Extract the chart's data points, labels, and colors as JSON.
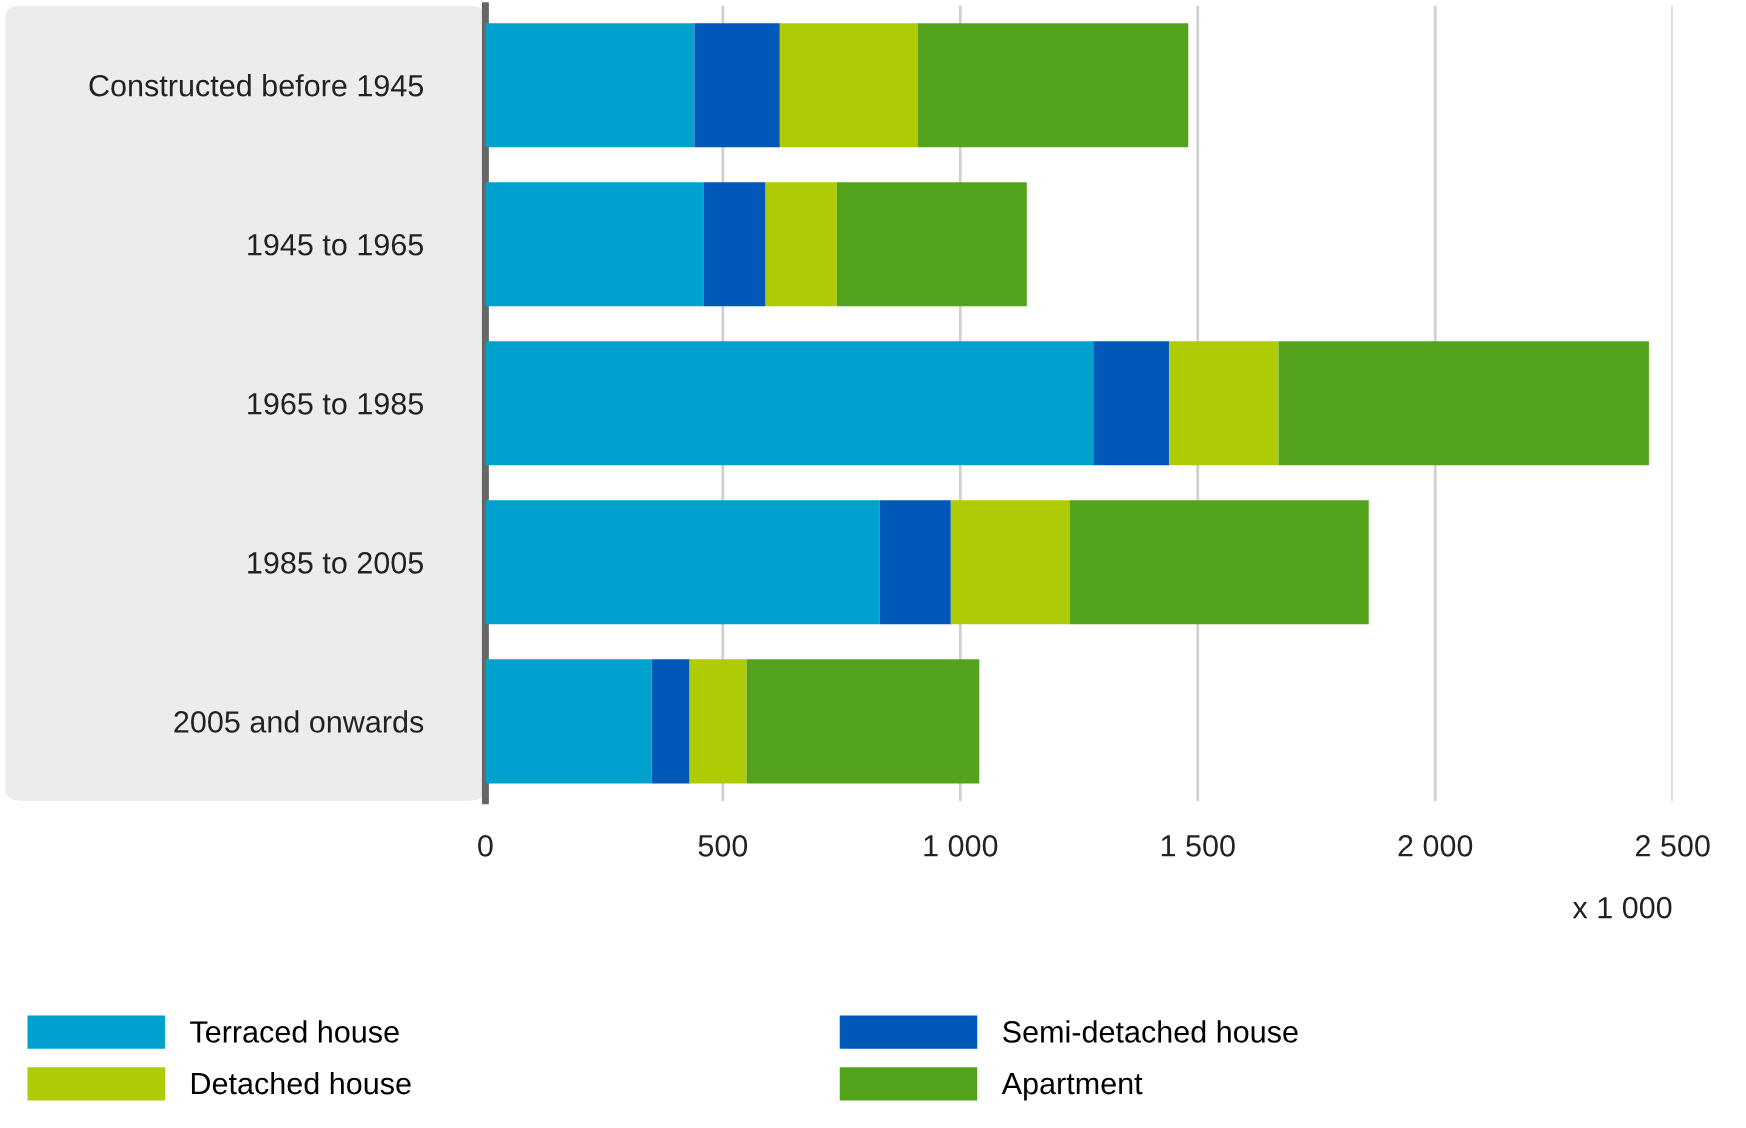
{
  "chart_data": {
    "type": "bar",
    "orientation": "horizontal",
    "stacked": true,
    "categories": [
      "Constructed before 1945",
      "1945 to 1965",
      "1965 to 1985",
      "1985 to 2005",
      "2005 and onwards"
    ],
    "series": [
      {
        "name": "Terraced house",
        "color": "#00a1cd",
        "values": [
          440,
          460,
          1280,
          830,
          350
        ]
      },
      {
        "name": "Semi-detached house",
        "color": "#0058b8",
        "values": [
          180,
          130,
          160,
          150,
          80
        ]
      },
      {
        "name": "Detached house",
        "color": "#afcb05",
        "values": [
          290,
          150,
          230,
          250,
          120
        ]
      },
      {
        "name": "Apartment",
        "color": "#53a31d",
        "values": [
          570,
          400,
          780,
          630,
          490
        ]
      }
    ],
    "xlim": [
      0,
      2500
    ],
    "xticks": [
      0,
      500,
      {
        "value": 1000,
        "label": "1 000"
      },
      {
        "value": 1500,
        "label": "1 500"
      },
      {
        "value": 2000,
        "label": "2 000"
      },
      {
        "value": 2500,
        "label": "2 500"
      }
    ],
    "xlabel": "x 1 000",
    "grid": "x",
    "legend": "bottom"
  }
}
